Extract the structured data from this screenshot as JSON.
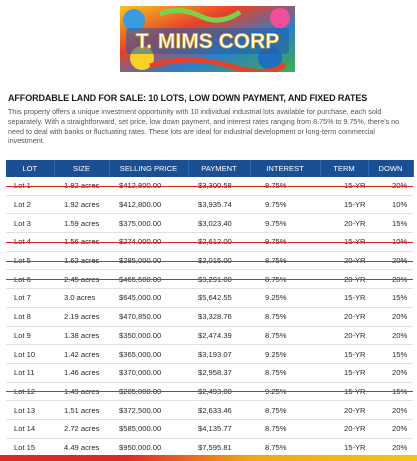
{
  "brand": {
    "logo_text": "T. MIMS CORP"
  },
  "headline": "AFFORDABLE LAND FOR SALE: 10 LOTS, LOW DOWN PAYMENT, AND FIXED RATES",
  "description": "This property offers a unique investment opportunity with 10 individual industrial lots available for purchase, each sold separately. With a straightforward, set price, low down payment, and interest rates ranging from 8.75% to 9.75%, there's no need to deal with banks or fluctuating rates. These lots are ideal for industrial development or long-term commercial investment.",
  "table": {
    "columns": [
      "LOT",
      "SIZE",
      "SELLING PRICE",
      "PAYMENT",
      "INTEREST",
      "TERM",
      "DOWN"
    ],
    "rows": [
      {
        "sold": true,
        "cells": [
          "Lot 1",
          "1.92 acres",
          "$412,800.00",
          "$3,300.58",
          "8.75%",
          "15-YR",
          "20%"
        ]
      },
      {
        "sold": false,
        "cells": [
          "Lot 2",
          "1.92 acres",
          "$412,800.00",
          "$3,935.74",
          "9.75%",
          "15-YR",
          "10%"
        ]
      },
      {
        "sold": false,
        "cells": [
          "Lot 3",
          "1.59 acres",
          "$375,000.00",
          "$3,023.40",
          "9.75%",
          "20-YR",
          "15%"
        ]
      },
      {
        "sold": true,
        "cells": [
          "Lot 4",
          "1.56 acres",
          "$274,000.00",
          "$2,612.00",
          "9.75%",
          "15-YR",
          "10%"
        ]
      },
      {
        "sold": true,
        "cells": [
          "Lot 5",
          "1.62 acres",
          "$285,000.00",
          "$2,015.00",
          "8.75%",
          "20-YR",
          "20%"
        ]
      },
      {
        "sold": true,
        "cells": [
          "Lot 6",
          "2.45 acres",
          "$465,500.00",
          "$3,291.00",
          "8.75%",
          "20-YR",
          "20%"
        ]
      },
      {
        "sold": false,
        "cells": [
          "Lot 7",
          "3.0 acres",
          "$645,000.00",
          "$5,642.55",
          "9.25%",
          "15-YR",
          "15%"
        ]
      },
      {
        "sold": false,
        "cells": [
          "Lot 8",
          "2.19 acres",
          "$470,850.00",
          "$3,328.76",
          "8.75%",
          "20-YR",
          "20%"
        ]
      },
      {
        "sold": false,
        "cells": [
          "Lot 9",
          "1.38 acres",
          "$350,000.00",
          "$2,474.39",
          "8.75%",
          "20-YR",
          "20%"
        ]
      },
      {
        "sold": false,
        "cells": [
          "Lot 10",
          "1.42 acres",
          "$365,000.00",
          "$3,193.07",
          "9.25%",
          "15-YR",
          "15%"
        ]
      },
      {
        "sold": false,
        "cells": [
          "Lot 11",
          "1.46 acres",
          "$370,000.00",
          "$2,958.37",
          "8.75%",
          "15-YR",
          "20%"
        ]
      },
      {
        "sold": true,
        "cells": [
          "Lot 12",
          "1.49 acres",
          "$285,000.00",
          "$2,493.00",
          "9.25%",
          "15-YR",
          "15%"
        ]
      },
      {
        "sold": false,
        "cells": [
          "Lot 13",
          "1.51 acres",
          "$372,500.00",
          "$2,633.46",
          "8.75%",
          "20-YR",
          "20%"
        ]
      },
      {
        "sold": false,
        "cells": [
          "Lot 14",
          "2.72 acres",
          "$585,000.00",
          "$4,135.77",
          "8.75%",
          "20-YR",
          "20%"
        ]
      },
      {
        "sold": false,
        "cells": [
          "Lot 15",
          "4.49 acres",
          "$950,000.00",
          "$7,595.81",
          "8.75%",
          "15-YR",
          "20%"
        ]
      }
    ]
  },
  "colors": {
    "header_blue": "#1a4f94",
    "strike_red": "#d9252b",
    "accent_orange": "#f2a51a"
  }
}
